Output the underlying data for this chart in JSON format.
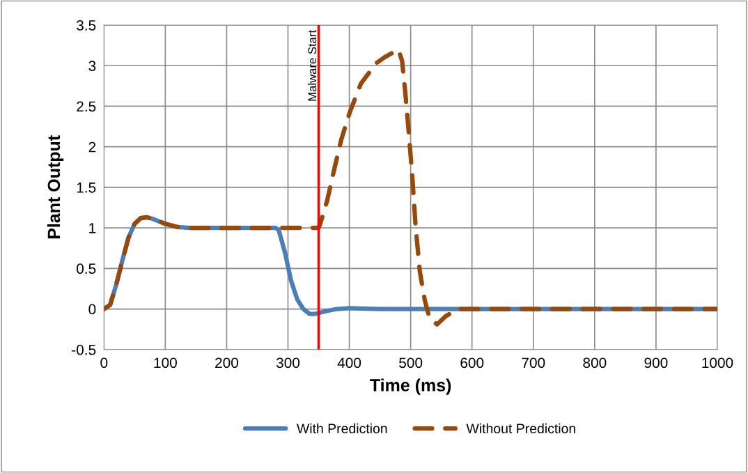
{
  "chart_data": {
    "type": "line",
    "xlabel": "Time (ms)",
    "ylabel": "Plant Output",
    "xlim": [
      0,
      1000
    ],
    "xticks": [
      0,
      100,
      200,
      300,
      400,
      500,
      600,
      700,
      800,
      900,
      1000
    ],
    "ylim": [
      -0.5,
      3.5
    ],
    "yticks": [
      -0.5,
      0,
      0.5,
      1,
      1.5,
      2,
      2.5,
      3,
      3.5
    ],
    "grid": true,
    "legend": "bottom",
    "series": [
      {
        "name": "With Prediction",
        "color": "#4a7ebb",
        "line_style": "solid",
        "x": [
          0,
          10,
          20,
          30,
          40,
          50,
          60,
          70,
          80,
          100,
          120,
          140,
          200,
          280,
          285,
          295,
          305,
          315,
          325,
          335,
          345,
          360,
          380,
          400,
          450,
          1000
        ],
        "values": [
          0,
          0.05,
          0.3,
          0.6,
          0.88,
          1.05,
          1.12,
          1.13,
          1.11,
          1.05,
          1.01,
          1.0,
          1.0,
          1.0,
          0.97,
          0.7,
          0.35,
          0.12,
          0.0,
          -0.06,
          -0.06,
          -0.03,
          0.0,
          0.01,
          0.0,
          0.0
        ]
      },
      {
        "name": "Without Prediction",
        "color": "#984807",
        "line_style": "dashed",
        "x": [
          0,
          10,
          20,
          30,
          40,
          50,
          60,
          70,
          80,
          100,
          120,
          140,
          200,
          280,
          350,
          353,
          364,
          376,
          387,
          401,
          419,
          444,
          457,
          480,
          486,
          491,
          497,
          503,
          508,
          515,
          523,
          531,
          543,
          557,
          577,
          1000
        ],
        "values": [
          0,
          0.05,
          0.3,
          0.6,
          0.88,
          1.05,
          1.12,
          1.13,
          1.11,
          1.05,
          1.01,
          1.0,
          1.0,
          1.0,
          1.0,
          1.06,
          1.34,
          1.74,
          2.09,
          2.43,
          2.78,
          3.03,
          3.1,
          3.2,
          3.06,
          2.69,
          2.17,
          1.6,
          1.03,
          0.46,
          0.11,
          -0.12,
          -0.19,
          -0.09,
          0.0,
          0.0
        ]
      }
    ],
    "ref_lines": [
      {
        "axis": "x",
        "value": 350,
        "label": "Malware Start",
        "color": "#ff0000",
        "line_style": "solid"
      }
    ]
  }
}
